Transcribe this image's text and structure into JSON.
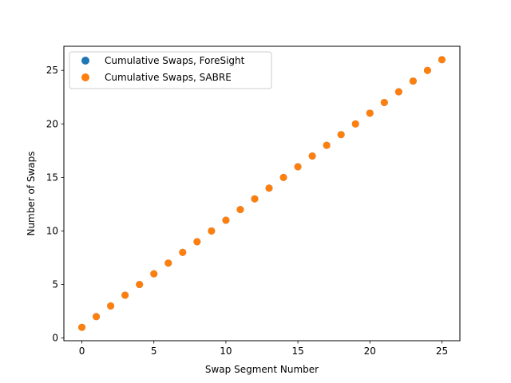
{
  "chart_data": {
    "type": "scatter",
    "xlabel": "Swap Segment Number",
    "ylabel": "Number of Swaps",
    "xlim": [
      -1.25,
      26.25
    ],
    "ylim": [
      -0.25,
      27.25
    ],
    "xticks": [
      0,
      5,
      10,
      15,
      20,
      25
    ],
    "yticks": [
      0,
      5,
      10,
      15,
      20,
      25
    ],
    "grid": false,
    "legend_position": "top-left",
    "series": [
      {
        "name": "Cumulative Swaps, ForeSight",
        "color": "#1f77b4",
        "x": [
          0,
          1,
          2,
          3,
          4,
          5,
          6,
          7,
          8,
          9,
          10,
          11,
          12,
          13,
          14,
          15,
          16,
          17,
          18,
          19,
          20,
          21,
          22,
          23,
          24,
          25
        ],
        "y": [
          1,
          2,
          3,
          4,
          5,
          6,
          7,
          8,
          9,
          10,
          11,
          12,
          13,
          14,
          15,
          16,
          17,
          18,
          19,
          20,
          21,
          22,
          23,
          24,
          25,
          26
        ]
      },
      {
        "name": "Cumulative Swaps, SABRE",
        "color": "#ff7f0e",
        "x": [
          0,
          1,
          2,
          3,
          4,
          5,
          6,
          7,
          8,
          9,
          10,
          11,
          12,
          13,
          14,
          15,
          16,
          17,
          18,
          19,
          20,
          21,
          22,
          23,
          24,
          25
        ],
        "y": [
          1,
          2,
          3,
          4,
          5,
          6,
          7,
          8,
          9,
          10,
          11,
          12,
          13,
          14,
          15,
          16,
          17,
          18,
          19,
          20,
          21,
          22,
          23,
          24,
          25,
          26
        ]
      }
    ]
  }
}
